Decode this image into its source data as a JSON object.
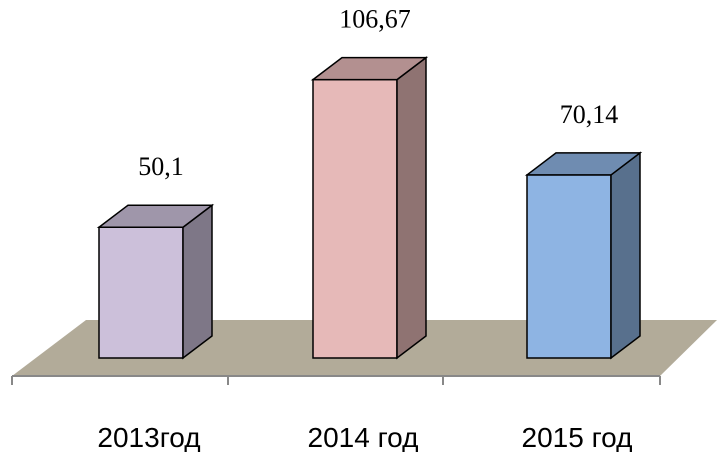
{
  "chart_data": {
    "type": "bar",
    "style": "3d-column",
    "categories": [
      "2013год",
      "2014 год",
      "2015 год"
    ],
    "values": [
      50.1,
      106.67,
      70.14
    ],
    "data_labels": [
      "50,1",
      "106,67",
      "70,14"
    ],
    "colors": {
      "bars": [
        "#ccc0da",
        "#e6b9b8",
        "#8eb4e3"
      ],
      "floor": "#b2ab99"
    },
    "title": "",
    "xlabel": "",
    "ylabel": "",
    "grid": false,
    "legend": "none"
  }
}
